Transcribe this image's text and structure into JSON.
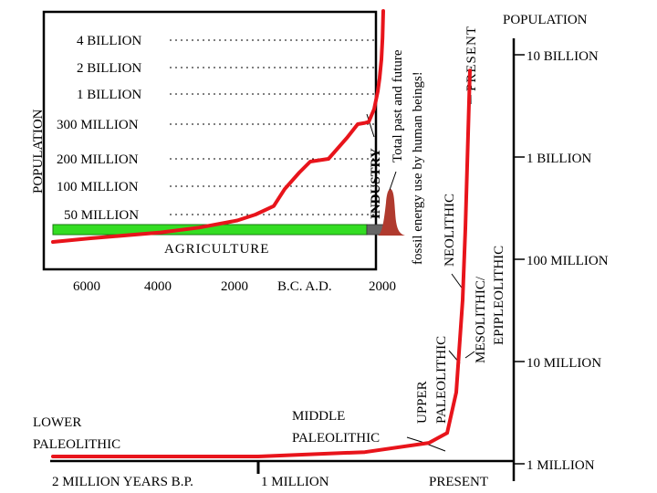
{
  "colors": {
    "curve": "#e8141b",
    "agriculture_bar": "#33dd22",
    "fossil_spike": "#b03a2e",
    "axis": "#000000"
  },
  "chart_data": [
    {
      "type": "line",
      "title": "Population",
      "ylabel": "POPULATION",
      "xlabel": "",
      "x_ticks": [
        "6000",
        "4000",
        "2000",
        "B.C. A.D.",
        "2000"
      ],
      "x_tick_values": [
        -6000,
        -4000,
        -2000,
        0,
        2000
      ],
      "y_ticks": [
        "4 BILLION",
        "2 BILLION",
        "1 BILLION",
        "300 MILLION",
        "200 MILLION",
        "100 MILLION",
        "50 MILLION"
      ],
      "y_tick_values": [
        4000,
        2000,
        1000,
        300,
        200,
        100,
        50
      ],
      "y_unit": "millions of people",
      "xlim": [
        -8000,
        2000
      ],
      "gridlines": "dotted, horizontal",
      "series": [
        {
          "name": "population",
          "x": [
            -8000,
            -6000,
            -4000,
            -3000,
            -2000,
            -1500,
            -1000,
            -700,
            -300,
            0,
            500,
            1000,
            1300,
            1500,
            1600,
            1750,
            1850,
            1900,
            1950,
            1980,
            2000
          ],
          "y": [
            4,
            10,
            20,
            28,
            40,
            50,
            65,
            95,
            150,
            190,
            200,
            260,
            300,
            330,
            350,
            650,
            1100,
            1600,
            2600,
            4200,
            6500
          ]
        }
      ],
      "bands": [
        {
          "label": "AGRICULTURE",
          "x_range": [
            -8000,
            1800
          ],
          "y": 50
        }
      ],
      "annotations": [
        {
          "label": "INDUSTRY",
          "x": 1800
        },
        {
          "label": "Total past and future fossil energy use by human beings!",
          "x": 2000
        }
      ]
    },
    {
      "type": "line",
      "title": "POPULATION",
      "ylabel": "POPULATION",
      "xlabel": "YEARS B.P.",
      "x_ticks": [
        "2 MILLION YEARS B.P.",
        "1 MILLION",
        "PRESENT"
      ],
      "y_ticks": [
        "10 BILLION",
        "1 BILLION",
        "100 MILLION",
        "10 MILLION",
        "1 MILLION"
      ],
      "y_tick_values": [
        10000000000,
        1000000000,
        100000000,
        10000000,
        1000000
      ],
      "y_scale": "log",
      "series": [
        {
          "name": "population",
          "x_years_bp": [
            2000000,
            1500000,
            1000000,
            500000,
            200000,
            100000,
            40000,
            10000,
            5000,
            0
          ],
          "y": [
            1000000,
            1050000,
            1100000,
            1300000,
            1600000,
            2000000,
            5000000,
            40000000,
            200000000,
            7000000000
          ]
        }
      ],
      "eras": [
        "LOWER PALEOLITHIC",
        "MIDDLE PALEOLITHIC",
        "UPPER PALEOLITHIC",
        "MESOLITHIC/ EPIPLEOLITHIC",
        "NEOLITHIC",
        "PRESENT"
      ]
    }
  ],
  "labels": {
    "inset": {
      "ylabel": "POPULATION",
      "y_ticks": [
        "4 BILLION",
        "2 BILLION",
        "1 BILLION",
        "300 MILLION",
        "200 MILLION",
        "100 MILLION",
        "50 MILLION"
      ],
      "x_ticks": [
        "6000",
        "4000",
        "2000",
        "B.C. A.D.",
        "2000"
      ],
      "agriculture": "AGRICULTURE",
      "industry": "INDUSTRY",
      "fossil_line1": "Total past and future",
      "fossil_line2": "fossil energy use by human beings!",
      "present": "PRESENT"
    },
    "main": {
      "title": "POPULATION",
      "y_ticks": [
        "10 BILLION",
        "1 BILLION",
        "100 MILLION",
        "10 MILLION",
        "1 MILLION"
      ],
      "x_ticks": [
        "2 MILLION YEARS B.P.",
        "1 MILLION",
        "PRESENT"
      ],
      "lower_paleolithic_1": "LOWER",
      "lower_paleolithic_2": "PALEOLITHIC",
      "middle_paleolithic_1": "MIDDLE",
      "middle_paleolithic_2": "PALEOLITHIC",
      "upper_paleolithic_1": "UPPER",
      "upper_paleolithic_2": "PALEOLITHIC",
      "meso_1": "MESOLITHIC/",
      "meso_2": "EPIPLEOLITHIC",
      "neolithic": "NEOLITHIC"
    }
  }
}
